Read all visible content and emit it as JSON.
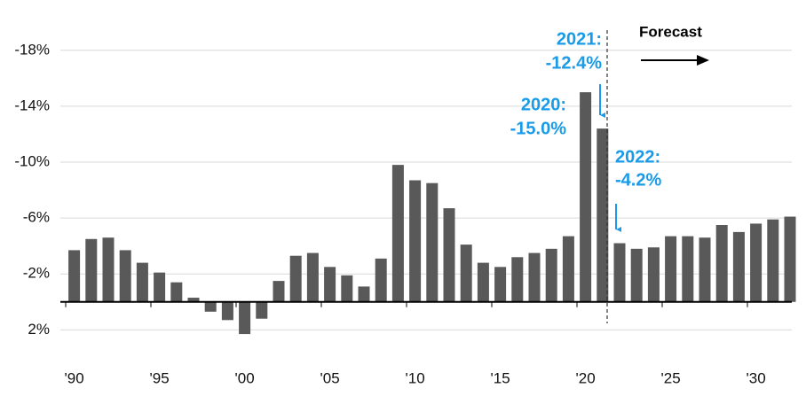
{
  "chart_data": {
    "type": "bar",
    "categories": [
      "'90",
      null,
      null,
      null,
      null,
      "'95",
      null,
      null,
      null,
      null,
      "'00",
      null,
      null,
      null,
      null,
      "'05",
      null,
      null,
      null,
      null,
      "'10",
      null,
      null,
      null,
      null,
      "'15",
      null,
      null,
      null,
      null,
      "'20",
      null,
      null,
      null,
      null,
      "'25",
      null,
      null,
      null,
      null,
      "'30",
      null,
      null
    ],
    "values": [
      -3.7,
      -4.5,
      -4.6,
      -3.7,
      -2.8,
      -2.1,
      -1.4,
      -0.3,
      0.7,
      1.3,
      2.3,
      1.2,
      -1.5,
      -3.3,
      -3.5,
      -2.5,
      -1.9,
      -1.1,
      -3.1,
      -9.8,
      -8.7,
      -8.5,
      -6.7,
      -4.1,
      -2.8,
      -2.5,
      -3.2,
      -3.5,
      -3.8,
      -4.7,
      -15.0,
      -12.4,
      -4.2,
      -3.8,
      -3.9,
      -4.7,
      -4.7,
      -4.6,
      -5.5,
      -5.0,
      -5.6,
      -5.9,
      -6.1
    ],
    "color": "#595959",
    "ylim": [
      3.5,
      -19
    ],
    "yticks": [
      {
        "value": -18,
        "label": "-18%"
      },
      {
        "value": -14,
        "label": "-14%"
      },
      {
        "value": -10,
        "label": "-10%"
      },
      {
        "value": -6,
        "label": "-6%"
      },
      {
        "value": -2,
        "label": "-2%"
      },
      {
        "value": 2,
        "label": "2%"
      }
    ],
    "grid": true,
    "annotations": [
      {
        "lines": [
          "2021:",
          "-12.4%"
        ]
      },
      {
        "lines": [
          "2020:",
          "-15.0%"
        ]
      },
      {
        "lines": [
          "2022:",
          "-4.2%"
        ]
      },
      {
        "lines": [
          "Forecast"
        ]
      }
    ]
  }
}
